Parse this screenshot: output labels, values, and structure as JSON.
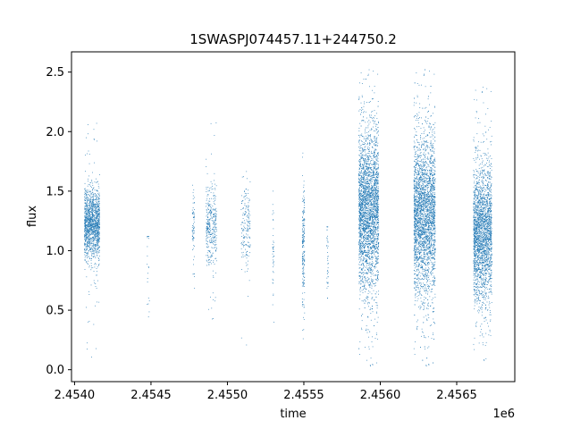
{
  "chart_data": {
    "type": "scatter",
    "title": "1SWASPJ074457.11+244750.2",
    "xlabel": "time",
    "ylabel": "flux",
    "x_offset_label": "1e6",
    "xlim": [
      2453980,
      2456880
    ],
    "ylim": [
      -0.1,
      2.67
    ],
    "x_ticks": [
      2454000,
      2454500,
      2455000,
      2455500,
      2456000,
      2456500
    ],
    "x_tick_labels": [
      "2.4540",
      "2.4545",
      "2.4550",
      "2.4555",
      "2.4560",
      "2.4565"
    ],
    "y_ticks": [
      0.0,
      0.5,
      1.0,
      1.5,
      2.0,
      2.5
    ],
    "y_tick_labels": [
      "0.0",
      "0.5",
      "1.0",
      "1.5",
      "2.0",
      "2.5"
    ],
    "grid": false,
    "legend": "none",
    "series": [
      {
        "color": "#1f77b4",
        "marker_size": 0.8,
        "clusters": [
          {
            "x_start": 2454065,
            "x_end": 2454165,
            "n": 1400,
            "y_mean": 1.22,
            "y_sd": 0.15,
            "y_min": 0.1,
            "y_max": 2.12
          },
          {
            "x_start": 2454475,
            "x_end": 2454490,
            "n": 20,
            "y_mean": 0.85,
            "y_sd": 0.3,
            "y_min": 0.25,
            "y_max": 1.12
          },
          {
            "x_start": 2454770,
            "x_end": 2454785,
            "n": 70,
            "y_mean": 1.15,
            "y_sd": 0.2,
            "y_min": 0.4,
            "y_max": 1.55
          },
          {
            "x_start": 2454860,
            "x_end": 2454930,
            "n": 360,
            "y_mean": 1.22,
            "y_sd": 0.17,
            "y_min": 0.4,
            "y_max": 2.12
          },
          {
            "x_start": 2455090,
            "x_end": 2455150,
            "n": 180,
            "y_mean": 1.2,
            "y_sd": 0.17,
            "y_min": 0.19,
            "y_max": 1.7
          },
          {
            "x_start": 2455295,
            "x_end": 2455305,
            "n": 40,
            "y_mean": 1.0,
            "y_sd": 0.25,
            "y_min": 0.4,
            "y_max": 1.5
          },
          {
            "x_start": 2455490,
            "x_end": 2455505,
            "n": 200,
            "y_mean": 1.0,
            "y_sd": 0.25,
            "y_min": 0.26,
            "y_max": 1.82
          },
          {
            "x_start": 2455650,
            "x_end": 2455660,
            "n": 40,
            "y_mean": 0.95,
            "y_sd": 0.2,
            "y_min": 0.6,
            "y_max": 1.2
          },
          {
            "x_start": 2455860,
            "x_end": 2455990,
            "n": 3200,
            "y_mean": 1.35,
            "y_sd": 0.33,
            "y_min": 0.0,
            "y_max": 2.55
          },
          {
            "x_start": 2456220,
            "x_end": 2456360,
            "n": 3200,
            "y_mean": 1.3,
            "y_sd": 0.33,
            "y_min": 0.0,
            "y_max": 2.55
          },
          {
            "x_start": 2456610,
            "x_end": 2456730,
            "n": 2400,
            "y_mean": 1.15,
            "y_sd": 0.28,
            "y_min": 0.05,
            "y_max": 2.4
          }
        ]
      }
    ]
  }
}
